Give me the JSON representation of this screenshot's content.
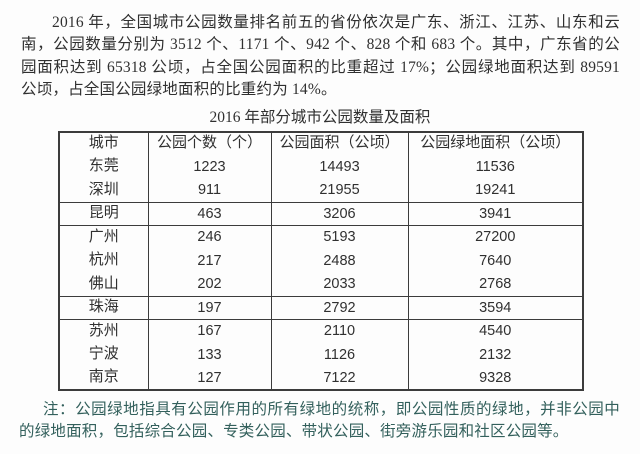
{
  "page": {
    "background": "#fdfdfd",
    "text_color": "#303030",
    "note_color": "#33605c",
    "table_border_color": "#3c3c3c"
  },
  "intro": {
    "text": "2016 年，全国城市公园数量排名前五的省份依次是广东、浙江、江苏、山东和云南，公园数量分别为 3512 个、1171 个、942 个、828 个和 683 个。其中，广东省的公园面积达到 65318 公顷，占全国公园面积的比重超过 17%；公园绿地面积达到 89591 公顷，占全国公园绿地面积的比重约为 14%。"
  },
  "table": {
    "title": "2016 年部分城市公园数量及面积",
    "headers": [
      "城市",
      "公园个数（个）",
      "公园面积（公顷）",
      "公园绿地面积（公顷）"
    ],
    "groups": [
      {
        "rows": [
          [
            "东莞",
            "1223",
            "14493",
            "11536"
          ],
          [
            "深圳",
            "911",
            "21955",
            "19241"
          ]
        ]
      },
      {
        "rows": [
          [
            "昆明",
            "463",
            "3206",
            "3941"
          ]
        ]
      },
      {
        "rows": [
          [
            "广州",
            "246",
            "5193",
            "27200"
          ],
          [
            "杭州",
            "217",
            "2488",
            "7640"
          ],
          [
            "佛山",
            "202",
            "2033",
            "2768"
          ]
        ]
      },
      {
        "rows": [
          [
            "珠海",
            "197",
            "2792",
            "3594"
          ]
        ]
      },
      {
        "rows": [
          [
            "苏州",
            "167",
            "2110",
            "4540"
          ],
          [
            "宁波",
            "133",
            "1126",
            "2132"
          ],
          [
            "南京",
            "127",
            "7122",
            "9328"
          ]
        ]
      }
    ]
  },
  "note": {
    "text": "注：公园绿地指具有公园作用的所有绿地的统称，即公园性质的绿地，并非公园中的绿地面积，包括综合公园、专类公园、带状公园、街旁游乐园和社区公园等。"
  },
  "chart_data": {
    "type": "table",
    "title": "2016 年部分城市公园数量及面积",
    "columns": [
      "城市",
      "公园个数（个）",
      "公园面积（公顷）",
      "公园绿地面积（公顷）"
    ],
    "rows": [
      [
        "东莞",
        1223,
        14493,
        11536
      ],
      [
        "深圳",
        911,
        21955,
        19241
      ],
      [
        "昆明",
        463,
        3206,
        3941
      ],
      [
        "广州",
        246,
        5193,
        27200
      ],
      [
        "杭州",
        217,
        2488,
        7640
      ],
      [
        "佛山",
        202,
        2033,
        2768
      ],
      [
        "珠海",
        197,
        2792,
        3594
      ],
      [
        "苏州",
        167,
        2110,
        4540
      ],
      [
        "宁波",
        133,
        1126,
        2132
      ],
      [
        "南京",
        127,
        7122,
        9328
      ]
    ]
  }
}
